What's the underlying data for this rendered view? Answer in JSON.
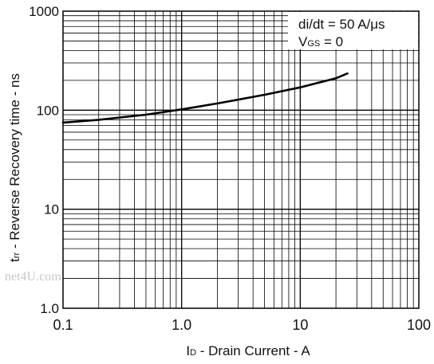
{
  "chart_data": {
    "type": "line",
    "x_scale": "log",
    "y_scale": "log",
    "xlim": [
      0.1,
      100
    ],
    "ylim": [
      1.0,
      1000
    ],
    "x_ticks": [
      "0.1",
      "1.0",
      "10",
      "100"
    ],
    "y_ticks": [
      "1.0",
      "10",
      "100",
      "1000"
    ],
    "xlabel": {
      "main": "I",
      "sub": "D",
      "rest": " - Drain Current - A"
    },
    "ylabel": {
      "main": "t",
      "sub": "rr",
      "rest": " - Reverse Recovery time - ns"
    },
    "grid": true,
    "legend_position": "top-right",
    "annotations": {
      "line1": "di/dt = 50 A/μs",
      "line2_main": "V",
      "line2_sub": "GS",
      "line2_rest": " = 0"
    },
    "series": [
      {
        "x": [
          0.1,
          0.2,
          0.5,
          1.0,
          2.0,
          5.0,
          10,
          20,
          25
        ],
        "y": [
          75,
          80,
          90,
          102,
          117,
          143,
          170,
          210,
          235
        ]
      }
    ],
    "colors": {
      "line": "#000000",
      "grid": "#000000",
      "background": "#ffffff"
    }
  },
  "watermark": "net4U.com"
}
